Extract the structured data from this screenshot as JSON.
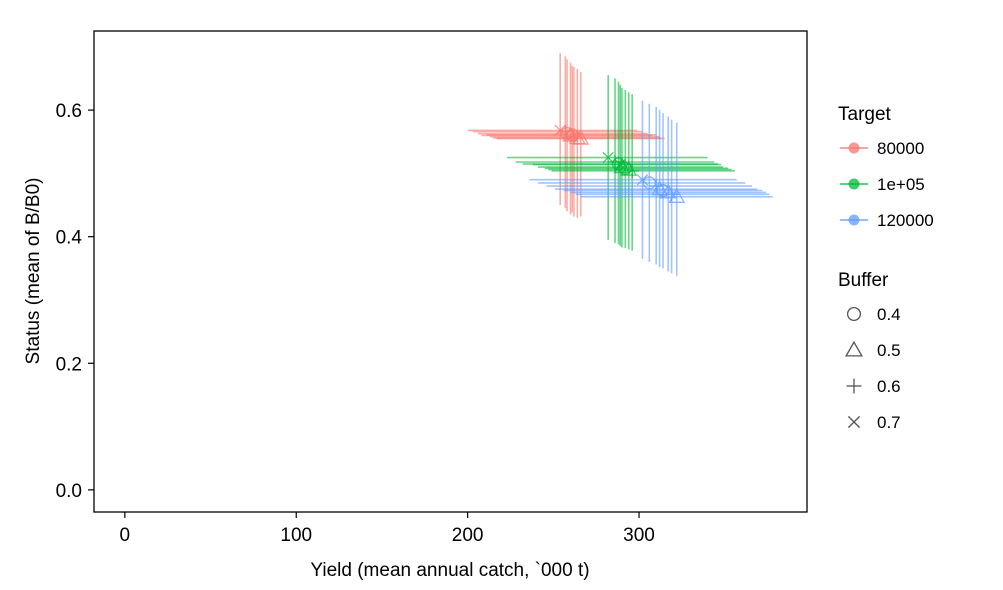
{
  "chart_data": {
    "type": "scatter",
    "title": "",
    "xlabel": "Yield (mean annual catch, `000 t)",
    "ylabel": "Status (mean of B/B0)",
    "xlim": [
      -18,
      398
    ],
    "ylim": [
      -0.035,
      0.725
    ],
    "x_ticks": [
      0,
      100,
      200,
      300
    ],
    "y_ticks": [
      0.0,
      0.2,
      0.4,
      0.6
    ],
    "x_tick_labels": [
      "0",
      "100",
      "200",
      "300"
    ],
    "y_tick_labels": [
      "0.0",
      "0.2",
      "0.4",
      "0.6"
    ],
    "grid": false,
    "legend_position": "right",
    "legends": [
      {
        "title": "Target",
        "kind": "color",
        "entries": [
          {
            "label": "80000",
            "color": "#F8766D"
          },
          {
            "label": "1e+05",
            "color": "#00BA38"
          },
          {
            "label": "120000",
            "color": "#619CFF"
          }
        ]
      },
      {
        "title": "Buffer",
        "kind": "shape",
        "entries": [
          {
            "label": "0.4",
            "shape": "circle"
          },
          {
            "label": "0.5",
            "shape": "triangle"
          },
          {
            "label": "0.6",
            "shape": "plus"
          },
          {
            "label": "0.7",
            "shape": "cross"
          }
        ]
      }
    ],
    "series": [
      {
        "name": "80000",
        "color": "#F8766D",
        "points": [
          {
            "shape": "cross",
            "x": 254,
            "y": 0.568,
            "xlo": 200,
            "xhi": 299,
            "ylo": 0.45,
            "yhi": 0.69
          },
          {
            "shape": "plus",
            "x": 257,
            "y": 0.566,
            "xlo": 203,
            "xhi": 302,
            "ylo": 0.445,
            "yhi": 0.685
          },
          {
            "shape": "circle",
            "x": 258,
            "y": 0.563,
            "xlo": 206,
            "xhi": 305,
            "ylo": 0.44,
            "yhi": 0.68
          },
          {
            "shape": "triangle",
            "x": 260,
            "y": 0.56,
            "xlo": 208,
            "xhi": 308,
            "ylo": 0.435,
            "yhi": 0.675
          },
          {
            "shape": "circle",
            "x": 261,
            "y": 0.561,
            "xlo": 211,
            "xhi": 310,
            "ylo": 0.438,
            "yhi": 0.67
          },
          {
            "shape": "plus",
            "x": 262,
            "y": 0.558,
            "xlo": 213,
            "xhi": 312,
            "ylo": 0.432,
            "yhi": 0.668
          },
          {
            "shape": "triangle",
            "x": 264,
            "y": 0.556,
            "xlo": 215,
            "xhi": 313,
            "ylo": 0.43,
            "yhi": 0.665
          },
          {
            "shape": "triangle",
            "x": 266,
            "y": 0.555,
            "xlo": 217,
            "xhi": 315,
            "ylo": 0.432,
            "yhi": 0.66
          }
        ]
      },
      {
        "name": "1e+05",
        "color": "#00BA38",
        "points": [
          {
            "shape": "cross",
            "x": 282,
            "y": 0.525,
            "xlo": 223,
            "xhi": 340,
            "ylo": 0.395,
            "yhi": 0.655
          },
          {
            "shape": "plus",
            "x": 286,
            "y": 0.518,
            "xlo": 228,
            "xhi": 344,
            "ylo": 0.39,
            "yhi": 0.65
          },
          {
            "shape": "circle",
            "x": 288,
            "y": 0.515,
            "xlo": 232,
            "xhi": 346,
            "ylo": 0.388,
            "yhi": 0.645
          },
          {
            "shape": "cross",
            "x": 289,
            "y": 0.514,
            "xlo": 238,
            "xhi": 348,
            "ylo": 0.385,
            "yhi": 0.64
          },
          {
            "shape": "triangle",
            "x": 290,
            "y": 0.51,
            "xlo": 241,
            "xhi": 349,
            "ylo": 0.383,
            "yhi": 0.635
          },
          {
            "shape": "circle",
            "x": 292,
            "y": 0.508,
            "xlo": 245,
            "xhi": 352,
            "ylo": 0.382,
            "yhi": 0.632
          },
          {
            "shape": "triangle",
            "x": 294,
            "y": 0.506,
            "xlo": 247,
            "xhi": 354,
            "ylo": 0.38,
            "yhi": 0.628
          },
          {
            "shape": "plus",
            "x": 296,
            "y": 0.504,
            "xlo": 249,
            "xhi": 356,
            "ylo": 0.378,
            "yhi": 0.625
          }
        ]
      },
      {
        "name": "120000",
        "color": "#619CFF",
        "points": [
          {
            "shape": "cross",
            "x": 302,
            "y": 0.49,
            "xlo": 236,
            "xhi": 357,
            "ylo": 0.365,
            "yhi": 0.615
          },
          {
            "shape": "circle",
            "x": 306,
            "y": 0.485,
            "xlo": 241,
            "xhi": 362,
            "ylo": 0.36,
            "yhi": 0.61
          },
          {
            "shape": "plus",
            "x": 310,
            "y": 0.48,
            "xlo": 246,
            "xhi": 366,
            "ylo": 0.356,
            "yhi": 0.605
          },
          {
            "shape": "triangle",
            "x": 312,
            "y": 0.475,
            "xlo": 251,
            "xhi": 369,
            "ylo": 0.352,
            "yhi": 0.6
          },
          {
            "shape": "circle",
            "x": 314,
            "y": 0.473,
            "xlo": 256,
            "xhi": 372,
            "ylo": 0.35,
            "yhi": 0.595
          },
          {
            "shape": "triangle",
            "x": 317,
            "y": 0.47,
            "xlo": 260,
            "xhi": 374,
            "ylo": 0.345,
            "yhi": 0.59
          },
          {
            "shape": "plus",
            "x": 319,
            "y": 0.467,
            "xlo": 263,
            "xhi": 376,
            "ylo": 0.342,
            "yhi": 0.585
          },
          {
            "shape": "triangle",
            "x": 322,
            "y": 0.463,
            "xlo": 266,
            "xhi": 378,
            "ylo": 0.338,
            "yhi": 0.58
          }
        ]
      }
    ]
  }
}
